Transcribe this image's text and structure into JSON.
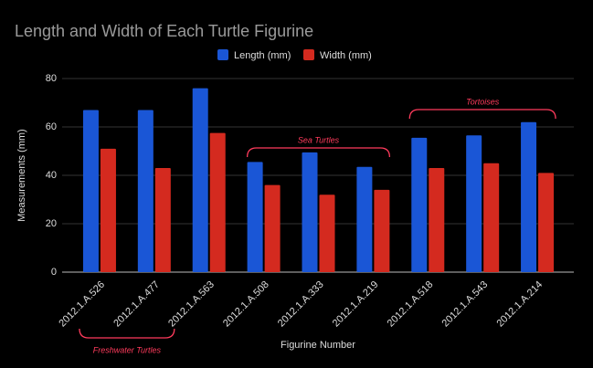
{
  "chart_data": {
    "type": "bar",
    "title": "Length and Width of Each Turtle Figurine",
    "x_label": "Figurine Number",
    "y_label": "Measurements (mm)",
    "categories": [
      "2012.1.A.526",
      "2012.1.A.477",
      "2012.1.A.563",
      "2012.1.A.508",
      "2012.1.A.333",
      "2012.1.A.219",
      "2012.1.A.518",
      "2012.1.A.543",
      "2012.1.A.214"
    ],
    "series": [
      {
        "name": "Length (mm)",
        "color": "#1a56d6",
        "values": [
          67,
          67,
          76,
          45.5,
          49.5,
          43.5,
          55.5,
          56.5,
          62
        ]
      },
      {
        "name": "Width (mm)",
        "color": "#d42a1f",
        "values": [
          51,
          43,
          57.5,
          36,
          32,
          34,
          43,
          45,
          41
        ]
      }
    ],
    "ylim": [
      0,
      80
    ],
    "yticks": [
      0,
      20,
      40,
      60,
      80
    ],
    "grid": true,
    "legend": "top",
    "annotations": [
      "Freshwater Turtles",
      "Sea Turtles",
      "Tortoises"
    ]
  }
}
